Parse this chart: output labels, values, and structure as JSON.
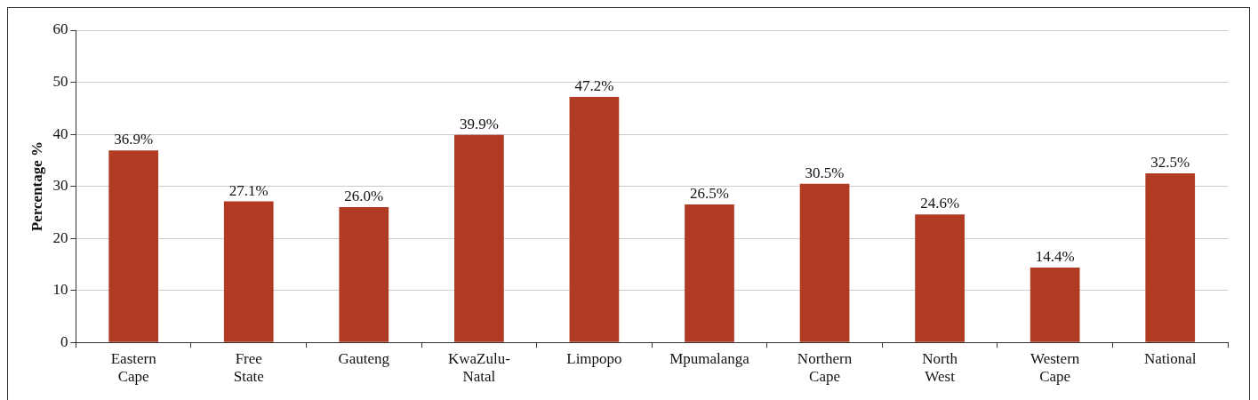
{
  "chart_data": {
    "type": "bar",
    "ylabel": "Percentage %",
    "categories": [
      "Eastern Cape",
      "Free State",
      "Gauteng",
      "KwaZulu-Natal",
      "Limpopo",
      "Mpumalanga",
      "Northern Cape",
      "North West",
      "Western Cape",
      "National"
    ],
    "values": [
      36.9,
      27.1,
      26.0,
      39.9,
      47.2,
      26.5,
      30.5,
      24.6,
      14.4,
      32.5
    ],
    "value_labels": [
      "36.9%",
      "27.1%",
      "26.0%",
      "39.9%",
      "47.2%",
      "26.5%",
      "30.5%",
      "24.6%",
      "14.4%",
      "32.5%"
    ],
    "color": "#b03a22",
    "ylim": [
      0,
      60
    ],
    "yticks": [
      0,
      10,
      20,
      30,
      40,
      50,
      60
    ],
    "grid": "y",
    "legend": false
  }
}
